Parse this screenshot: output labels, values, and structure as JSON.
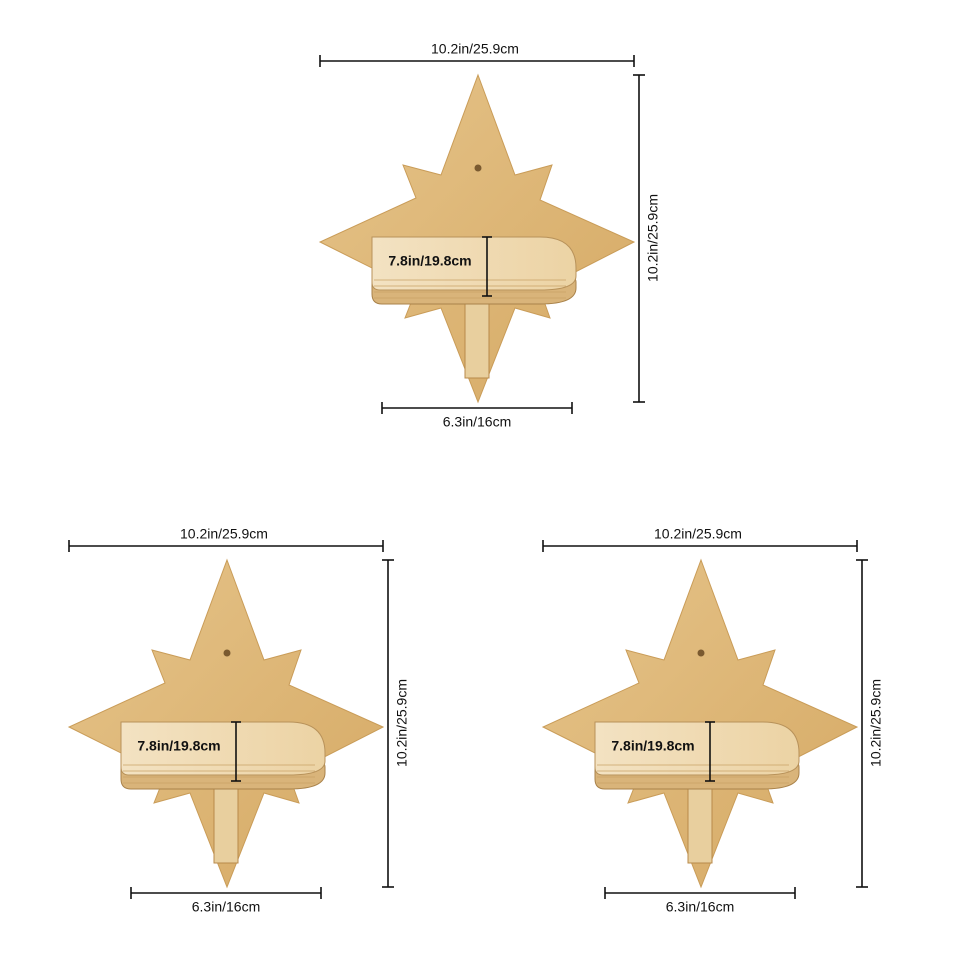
{
  "shelves": [
    {
      "width": "10.2in/25.9cm",
      "height": "10.2in/25.9cm",
      "depth": "7.8in/19.8cm",
      "shelf_width": "6.3in/16cm"
    },
    {
      "width": "10.2in/25.9cm",
      "height": "10.2in/25.9cm",
      "depth": "7.8in/19.8cm",
      "shelf_width": "6.3in/16cm"
    },
    {
      "width": "10.2in/25.9cm",
      "height": "10.2in/25.9cm",
      "depth": "7.8in/19.8cm",
      "shelf_width": "6.3in/16cm"
    }
  ]
}
